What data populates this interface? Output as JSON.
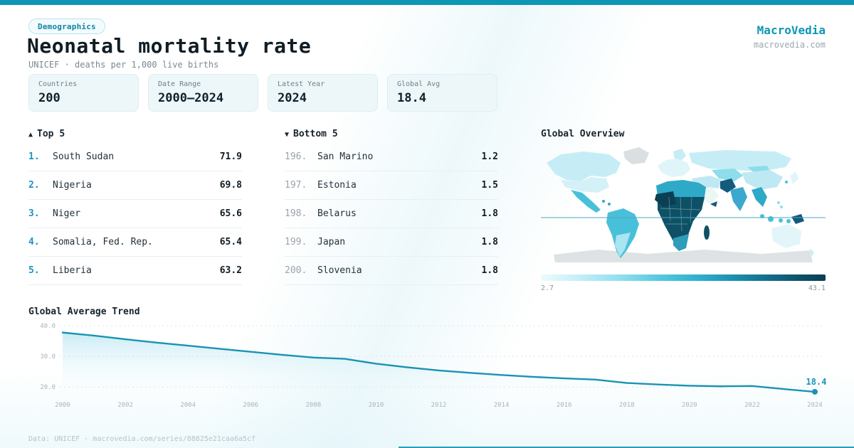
{
  "colors": {
    "accent": "#0e96b5",
    "line": "#1b92b4",
    "text_dark": "#16242c",
    "text_gray": "#7b8990",
    "rank_top": "#1b93c0",
    "rank_bottom": "#9aa4aa",
    "card_bg": "#edf7fa",
    "card_border": "#dceef3",
    "map_darkest": "#0a3f54",
    "map_dark": "#0e5166",
    "map_mid": "#2fa9c8",
    "map_cyan": "#49c0da",
    "map_light": "#c6edf6",
    "map_paler": "#e2f6fa",
    "map_nodata": "#dadfe2"
  },
  "header": {
    "badge": "Demographics",
    "title": "Neonatal mortality rate",
    "subtitle": "UNICEF · deaths per 1,000 live births",
    "brand": "MacroVedia",
    "brand_domain": "macrovedia.com"
  },
  "stats": [
    {
      "label": "Countries",
      "value": "200"
    },
    {
      "label": "Date Range",
      "value": "2000—2024"
    },
    {
      "label": "Latest Year",
      "value": "2024"
    },
    {
      "label": "Global Avg",
      "value": "18.4"
    }
  ],
  "top5": {
    "marker": "▲",
    "title": "Top 5",
    "items": [
      {
        "rank": "1.",
        "name": "South Sudan",
        "value": "71.9"
      },
      {
        "rank": "2.",
        "name": "Nigeria",
        "value": "69.8"
      },
      {
        "rank": "3.",
        "name": "Niger",
        "value": "65.6"
      },
      {
        "rank": "4.",
        "name": "Somalia, Fed. Rep.",
        "value": "65.4"
      },
      {
        "rank": "5.",
        "name": "Liberia",
        "value": "63.2"
      }
    ]
  },
  "bottom5": {
    "marker": "▼",
    "title": "Bottom 5",
    "items": [
      {
        "rank": "196.",
        "name": "San Marino",
        "value": "1.2"
      },
      {
        "rank": "197.",
        "name": "Estonia",
        "value": "1.5"
      },
      {
        "rank": "198.",
        "name": "Belarus",
        "value": "1.8"
      },
      {
        "rank": "199.",
        "name": "Japan",
        "value": "1.8"
      },
      {
        "rank": "200.",
        "name": "Slovenia",
        "value": "1.8"
      }
    ]
  },
  "map": {
    "title": "Global Overview",
    "legend_min": "2.7",
    "legend_max": "43.1"
  },
  "chart_data": {
    "type": "line",
    "title": "Global Average Trend",
    "xlabel": "",
    "ylabel": "",
    "grid": true,
    "legend": false,
    "x": [
      2000,
      2001,
      2002,
      2003,
      2004,
      2005,
      2006,
      2007,
      2008,
      2009,
      2010,
      2011,
      2012,
      2013,
      2014,
      2015,
      2016,
      2017,
      2018,
      2019,
      2020,
      2021,
      2022,
      2023,
      2024
    ],
    "values": [
      37.8,
      36.8,
      35.6,
      34.5,
      33.5,
      32.5,
      31.5,
      30.5,
      29.6,
      29.2,
      27.6,
      26.4,
      25.4,
      24.6,
      23.9,
      23.3,
      22.8,
      22.4,
      21.3,
      20.8,
      20.4,
      20.2,
      20.3,
      19.3,
      18.4
    ],
    "end_label": "18.4",
    "y_ticks": [
      {
        "v": 40,
        "label": "40.0"
      },
      {
        "v": 30,
        "label": "30.0"
      },
      {
        "v": 20,
        "label": "20.0"
      }
    ],
    "x_tick_labels": [
      2000,
      2002,
      2004,
      2006,
      2008,
      2010,
      2012,
      2014,
      2016,
      2018,
      2020,
      2022,
      2024
    ],
    "ylim": [
      17,
      41.9
    ]
  },
  "footer": {
    "text": "Data: UNICEF · macrovedia.com/series/88825e21caa6a5cf"
  }
}
